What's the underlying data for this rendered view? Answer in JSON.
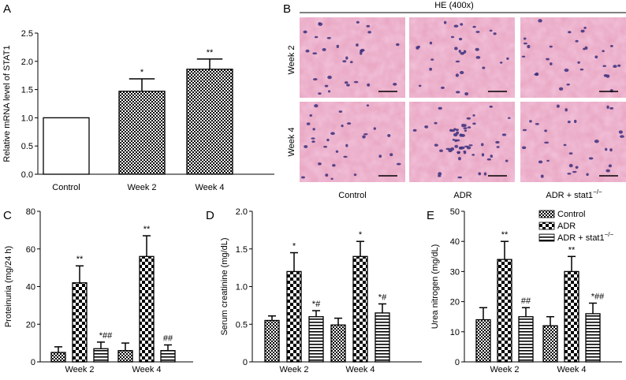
{
  "panels": {
    "A": "A",
    "B": "B",
    "C": "C",
    "D": "D",
    "E": "E"
  },
  "histology": {
    "title": "HE (400x)",
    "rows": [
      "Week 2",
      "Week 4"
    ],
    "columns": [
      "Control",
      "ADR",
      "ADR + stat1"
    ],
    "superscript": "−/−"
  },
  "legend": {
    "items": [
      {
        "label": "Control",
        "pattern": "checker"
      },
      {
        "label": "ADR",
        "pattern": "bigcheck"
      },
      {
        "label": "ADR + stat1",
        "sup": "−/−",
        "pattern": "hstripe"
      }
    ]
  },
  "colors": {
    "tissue_bg": "#e9a8c4",
    "nuclei": "#3b2f7d",
    "bar_stroke": "#000000"
  },
  "chart_data": [
    {
      "id": "A",
      "type": "bar",
      "categories": [
        "Control",
        "Week 2",
        "Week 4"
      ],
      "values": [
        1.0,
        1.47,
        1.86
      ],
      "errors": [
        0,
        0.22,
        0.18
      ],
      "annotations": [
        "",
        "*",
        "**"
      ],
      "patterns": [
        "white",
        "checker",
        "checker"
      ],
      "ylabel": "Relative mRNA level of STAT1",
      "ylim": [
        0,
        2.5
      ],
      "yticks": [
        "0.0",
        "0.5",
        "1.0",
        "1.5",
        "2.0",
        "2.5"
      ]
    },
    {
      "id": "C",
      "type": "bar",
      "categories": [
        "Week 2",
        "Week 4"
      ],
      "series": [
        {
          "values": [
            5,
            6
          ],
          "errors": [
            3,
            4
          ],
          "annotations": [
            "",
            ""
          ],
          "pattern": "checker"
        },
        {
          "values": [
            42,
            56
          ],
          "errors": [
            9,
            11
          ],
          "annotations": [
            "**",
            "**"
          ],
          "pattern": "bigcheck"
        },
        {
          "values": [
            7,
            6
          ],
          "errors": [
            3.5,
            3
          ],
          "annotations": [
            "*##",
            "##"
          ],
          "pattern": "hstripe"
        }
      ],
      "ylabel": "Proteinuria (mg/24 h)",
      "ylim": [
        0,
        80
      ],
      "yticks": [
        "0",
        "20",
        "40",
        "60",
        "80"
      ]
    },
    {
      "id": "D",
      "type": "bar",
      "categories": [
        "Week 2",
        "Week 4"
      ],
      "series": [
        {
          "values": [
            0.55,
            0.49
          ],
          "errors": [
            0.06,
            0.09
          ],
          "annotations": [
            "",
            ""
          ],
          "pattern": "checker"
        },
        {
          "values": [
            1.2,
            1.4
          ],
          "errors": [
            0.25,
            0.2
          ],
          "annotations": [
            "*",
            "*"
          ],
          "pattern": "bigcheck"
        },
        {
          "values": [
            0.6,
            0.65
          ],
          "errors": [
            0.08,
            0.12
          ],
          "annotations": [
            "*#",
            "*#"
          ],
          "pattern": "hstripe"
        }
      ],
      "ylabel": "Serum creatinine (mg/dL)",
      "ylim": [
        0,
        2.0
      ],
      "yticks": [
        "0",
        "0.5",
        "1.0",
        "1.5",
        "2.0"
      ]
    },
    {
      "id": "E",
      "type": "bar",
      "categories": [
        "Week 2",
        "Week 4"
      ],
      "series": [
        {
          "values": [
            14,
            12
          ],
          "errors": [
            4,
            3
          ],
          "annotations": [
            "",
            ""
          ],
          "pattern": "checker"
        },
        {
          "values": [
            34,
            30
          ],
          "errors": [
            6,
            5
          ],
          "annotations": [
            "**",
            "**"
          ],
          "pattern": "bigcheck"
        },
        {
          "values": [
            15,
            16
          ],
          "errors": [
            3,
            3.5
          ],
          "annotations": [
            "##",
            "*##"
          ],
          "pattern": "hstripe"
        }
      ],
      "ylabel": "Urea nitrogen (mg/dL)",
      "ylim": [
        0,
        50
      ],
      "yticks": [
        "0",
        "10",
        "20",
        "30",
        "40",
        "50"
      ]
    }
  ]
}
